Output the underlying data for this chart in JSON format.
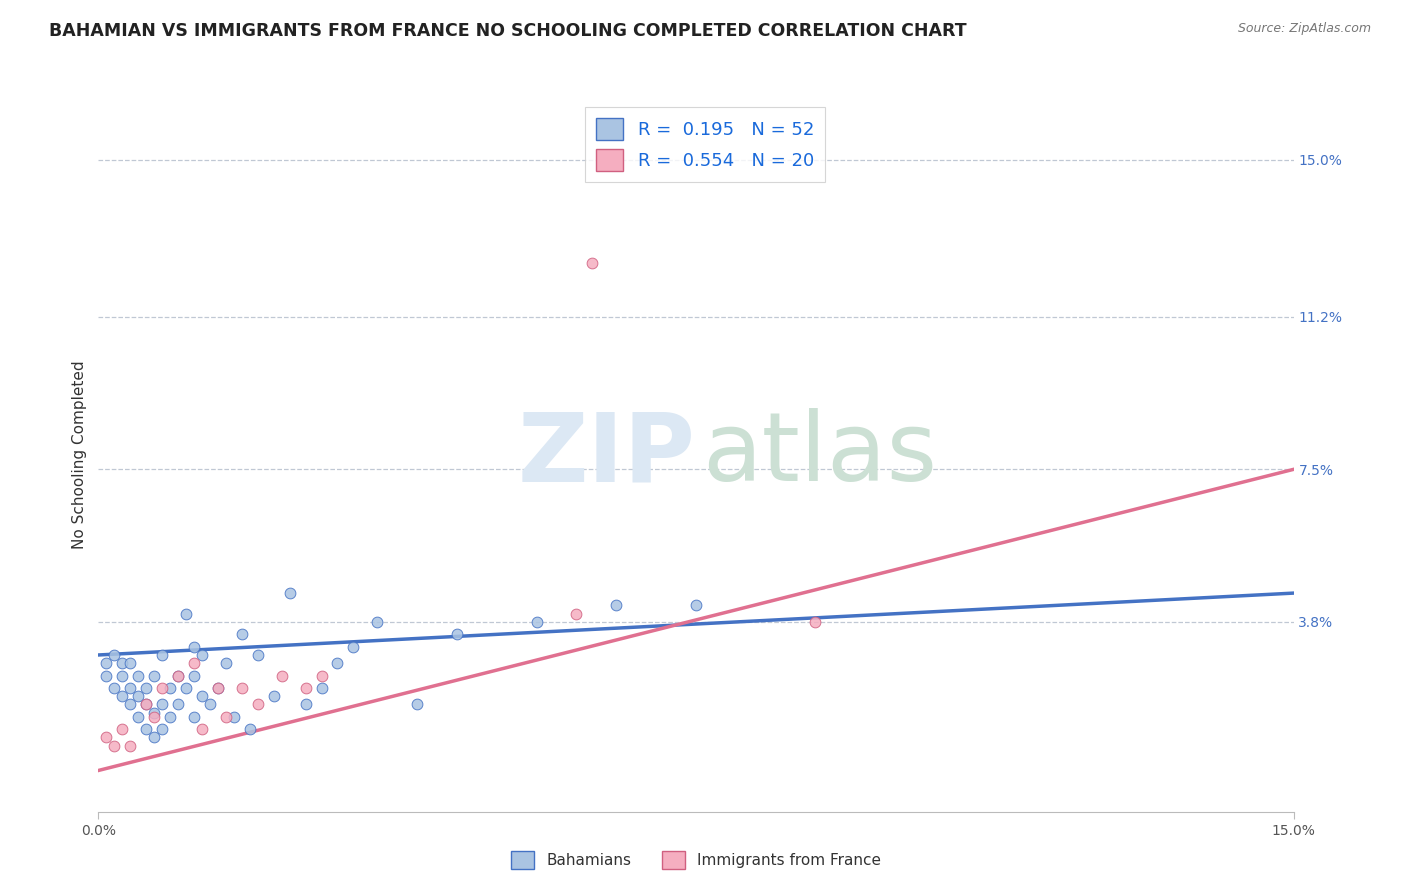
{
  "title": "BAHAMIAN VS IMMIGRANTS FROM FRANCE NO SCHOOLING COMPLETED CORRELATION CHART",
  "source": "Source: ZipAtlas.com",
  "ylabel": "No Schooling Completed",
  "right_ytick_labels": [
    "15.0%",
    "11.2%",
    "7.5%",
    "3.8%"
  ],
  "right_ytick_vals": [
    0.15,
    0.112,
    0.075,
    0.038
  ],
  "xmin": 0.0,
  "xmax": 0.15,
  "ymin": -0.008,
  "ymax": 0.165,
  "legend_r1": "R =  0.195   N = 52",
  "legend_r2": "R =  0.554   N = 20",
  "color_bahamian_fill": "#aac4e2",
  "color_bahamian_edge": "#4472c4",
  "color_france_fill": "#f5aec0",
  "color_france_edge": "#d06080",
  "color_bahamian_line": "#4472c4",
  "color_france_line": "#e07090",
  "bahamian_x": [
    0.001,
    0.001,
    0.002,
    0.002,
    0.003,
    0.003,
    0.003,
    0.004,
    0.004,
    0.004,
    0.005,
    0.005,
    0.005,
    0.006,
    0.006,
    0.006,
    0.007,
    0.007,
    0.007,
    0.008,
    0.008,
    0.008,
    0.009,
    0.009,
    0.01,
    0.01,
    0.011,
    0.011,
    0.012,
    0.012,
    0.012,
    0.013,
    0.013,
    0.014,
    0.015,
    0.016,
    0.017,
    0.018,
    0.019,
    0.02,
    0.022,
    0.024,
    0.026,
    0.028,
    0.03,
    0.032,
    0.035,
    0.04,
    0.045,
    0.055,
    0.065,
    0.075
  ],
  "bahamian_y": [
    0.028,
    0.025,
    0.022,
    0.03,
    0.02,
    0.025,
    0.028,
    0.018,
    0.022,
    0.028,
    0.015,
    0.02,
    0.025,
    0.012,
    0.018,
    0.022,
    0.01,
    0.016,
    0.025,
    0.012,
    0.018,
    0.03,
    0.015,
    0.022,
    0.018,
    0.025,
    0.04,
    0.022,
    0.015,
    0.025,
    0.032,
    0.02,
    0.03,
    0.018,
    0.022,
    0.028,
    0.015,
    0.035,
    0.012,
    0.03,
    0.02,
    0.045,
    0.018,
    0.022,
    0.028,
    0.032,
    0.038,
    0.018,
    0.035,
    0.038,
    0.042,
    0.042
  ],
  "france_x": [
    0.001,
    0.002,
    0.003,
    0.004,
    0.006,
    0.007,
    0.008,
    0.01,
    0.012,
    0.013,
    0.015,
    0.016,
    0.018,
    0.02,
    0.023,
    0.026,
    0.028,
    0.06,
    0.062,
    0.09
  ],
  "france_y": [
    0.01,
    0.008,
    0.012,
    0.008,
    0.018,
    0.015,
    0.022,
    0.025,
    0.028,
    0.012,
    0.022,
    0.015,
    0.022,
    0.018,
    0.025,
    0.022,
    0.025,
    0.04,
    0.125,
    0.038
  ],
  "bahamian_trend_x": [
    0.0,
    0.15
  ],
  "bahamian_trend_y": [
    0.03,
    0.045
  ],
  "france_trend_x": [
    0.0,
    0.15
  ],
  "france_trend_y": [
    0.002,
    0.075
  ]
}
